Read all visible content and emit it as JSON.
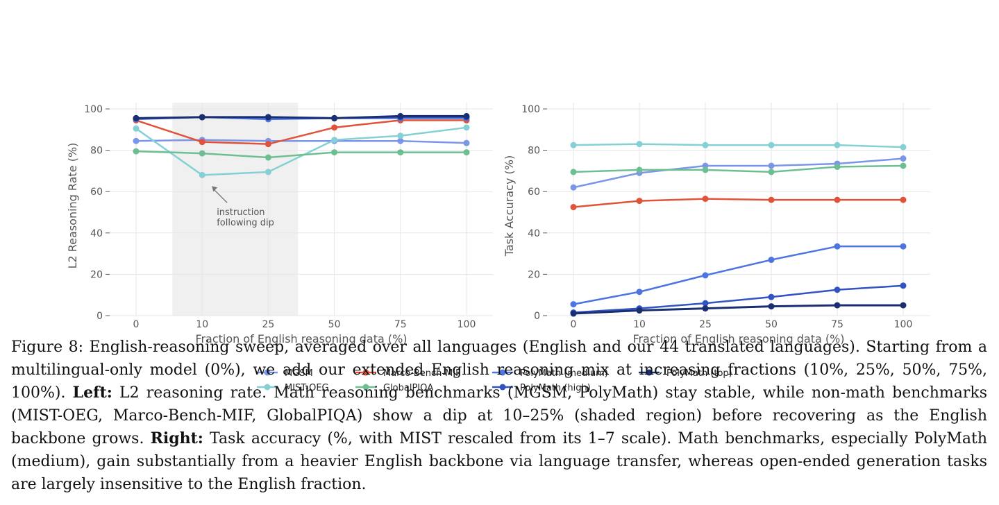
{
  "colors": {
    "MGSM": "#7b96e8",
    "MIST-OEG": "#84d0d4",
    "Marco-Bench-MIF": "#e0533a",
    "GlobalPIQA": "#6dbf92",
    "PolyMath (medium)": "#4d74e0",
    "PolyMath (high)": "#3253c2",
    "PolyMath (top)": "#192f72",
    "shade": "#f0f0f0",
    "grid": "#e6e6e6"
  },
  "legend": {
    "items": [
      "MGSM",
      "MIST-OEG",
      "Marco-Bench-MIF",
      "GlobalPIQA",
      "PolyMath (medium)",
      "PolyMath (high)",
      "PolyMath (top)"
    ]
  },
  "chart_data": [
    {
      "type": "line",
      "title": "",
      "xlabel": "Fraction of English reasoning data (%)",
      "ylabel": "L2 Reasoning Rate (%)",
      "categories": [
        "0",
        "10",
        "25",
        "50",
        "75",
        "100"
      ],
      "ylim": [
        0,
        100
      ],
      "yticks": [
        "0",
        "20",
        "40",
        "60",
        "80",
        "100"
      ],
      "grid": true,
      "shaded_region": [
        "10",
        "25"
      ],
      "annotation": {
        "lines": [
          "instruction",
          "following dip"
        ],
        "points_to": [
          "10",
          62
        ]
      },
      "series": [
        {
          "name": "MGSM",
          "values": [
            84.5,
            85,
            84.5,
            84.5,
            84.5,
            83.5
          ]
        },
        {
          "name": "MIST-OEG",
          "values": [
            90.5,
            68,
            69.5,
            85,
            87,
            91
          ]
        },
        {
          "name": "Marco-Bench-MIF",
          "values": [
            94.5,
            84,
            83,
            91,
            94.5,
            94.5
          ]
        },
        {
          "name": "GlobalPIQA",
          "values": [
            79.5,
            78.5,
            76.5,
            79,
            79,
            79
          ]
        },
        {
          "name": "PolyMath (medium)",
          "values": [
            95,
            96,
            95,
            95.5,
            95.5,
            95.5
          ]
        },
        {
          "name": "PolyMath (high)",
          "values": [
            95.5,
            96,
            96,
            95.5,
            96,
            96
          ]
        },
        {
          "name": "PolyMath (top)",
          "values": [
            95.5,
            96,
            96,
            95.5,
            96.5,
            96.5
          ]
        }
      ]
    },
    {
      "type": "line",
      "title": "",
      "xlabel": "Fraction of English reasoning data (%)",
      "ylabel": "Task Accuracy (%)",
      "categories": [
        "0",
        "10",
        "25",
        "50",
        "75",
        "100"
      ],
      "ylim": [
        0,
        100
      ],
      "yticks": [
        "0",
        "20",
        "40",
        "60",
        "80",
        "100"
      ],
      "grid": true,
      "series": [
        {
          "name": "MGSM",
          "values": [
            62,
            69,
            72.5,
            72.5,
            73.5,
            76
          ]
        },
        {
          "name": "MIST-OEG",
          "values": [
            82.5,
            83,
            82.5,
            82.5,
            82.5,
            81.5
          ]
        },
        {
          "name": "Marco-Bench-MIF",
          "values": [
            52.5,
            55.5,
            56.5,
            56,
            56,
            56
          ]
        },
        {
          "name": "GlobalPIQA",
          "values": [
            69.5,
            70.5,
            70.5,
            69.5,
            72,
            72.5
          ]
        },
        {
          "name": "PolyMath (medium)",
          "values": [
            5.5,
            11.5,
            19.5,
            27,
            33.5,
            33.5
          ]
        },
        {
          "name": "PolyMath (high)",
          "values": [
            1.5,
            3.5,
            6,
            9,
            12.5,
            14.5
          ]
        },
        {
          "name": "PolyMath (top)",
          "values": [
            1,
            2.5,
            3.5,
            4.5,
            5,
            5
          ]
        }
      ]
    }
  ],
  "caption": {
    "p1": "Figure 8: English-reasoning sweep, averaged over all languages (English and our 44 translated languages). Starting from a multilingual-only model (0%), we add our extended English reasoning mix at increasing fractions (10%, 25%, 50%, 75%, 100%). ",
    "left_label": "Left:",
    "p2": " L2 reasoning rate. Math reasoning benchmarks (MGSM, PolyMath) stay stable, while non-math benchmarks (MIST-OEG, Marco-Bench-MIF, GlobalPIQA) show a dip at 10–25% (shaded region) before recovering as the English backbone grows. ",
    "right_label": "Right:",
    "p3": " Task accuracy (%, with MIST rescaled from its 1–7 scale). Math benchmarks, especially PolyMath (medium), gain substantially from a heavier English backbone via language transfer, whereas open-ended generation tasks are largely insensitive to the English fraction."
  }
}
